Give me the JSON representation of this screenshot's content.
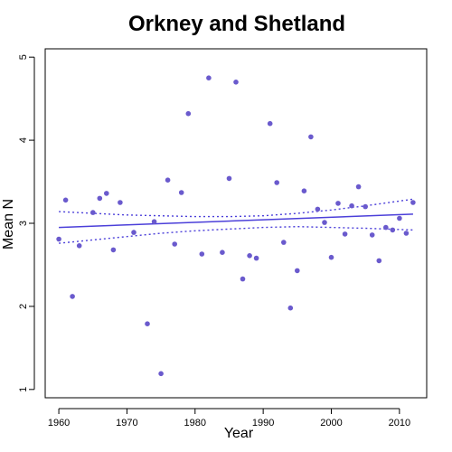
{
  "chart_data": {
    "type": "scatter",
    "title": "Orkney and Shetland",
    "xlabel": "Year",
    "ylabel": "Mean N",
    "xlim": [
      1958,
      2014
    ],
    "ylim": [
      0.9,
      5.1
    ],
    "x_ticks": [
      1960,
      1970,
      1980,
      1990,
      2000,
      2010
    ],
    "y_ticks": [
      1,
      2,
      3,
      4,
      5
    ],
    "colors": {
      "points": "#6a5acd",
      "trend": "#4b3fd9",
      "ci": "#4b3fd9"
    },
    "points": [
      [
        1960,
        2.81
      ],
      [
        1961,
        3.28
      ],
      [
        1962,
        2.12
      ],
      [
        1963,
        2.73
      ],
      [
        1965,
        3.13
      ],
      [
        1966,
        3.3
      ],
      [
        1967,
        3.36
      ],
      [
        1968,
        2.68
      ],
      [
        1969,
        3.25
      ],
      [
        1971,
        2.89
      ],
      [
        1973,
        1.79
      ],
      [
        1974,
        3.02
      ],
      [
        1975,
        1.19
      ],
      [
        1976,
        3.52
      ],
      [
        1977,
        2.75
      ],
      [
        1978,
        3.37
      ],
      [
        1979,
        4.32
      ],
      [
        1981,
        2.63
      ],
      [
        1982,
        4.75
      ],
      [
        1984,
        2.65
      ],
      [
        1985,
        3.54
      ],
      [
        1986,
        4.7
      ],
      [
        1987,
        2.33
      ],
      [
        1988,
        2.61
      ],
      [
        1989,
        2.58
      ],
      [
        1991,
        4.2
      ],
      [
        1992,
        3.49
      ],
      [
        1993,
        2.77
      ],
      [
        1994,
        1.98
      ],
      [
        1995,
        2.43
      ],
      [
        1996,
        3.39
      ],
      [
        1997,
        4.04
      ],
      [
        1998,
        3.17
      ],
      [
        1999,
        3.01
      ],
      [
        2000,
        2.59
      ],
      [
        2001,
        3.24
      ],
      [
        2002,
        2.87
      ],
      [
        2003,
        3.21
      ],
      [
        2004,
        3.44
      ],
      [
        2005,
        3.2
      ],
      [
        2006,
        2.86
      ],
      [
        2007,
        2.55
      ],
      [
        2008,
        2.95
      ],
      [
        2009,
        2.92
      ],
      [
        2010,
        3.06
      ],
      [
        2011,
        2.88
      ],
      [
        2012,
        3.25
      ]
    ],
    "trend": {
      "x": [
        1960,
        2012
      ],
      "y": [
        2.95,
        3.11
      ]
    },
    "ci_upper": [
      [
        1960,
        3.14
      ],
      [
        1965,
        3.12
      ],
      [
        1970,
        3.1
      ],
      [
        1975,
        3.09
      ],
      [
        1980,
        3.08
      ],
      [
        1985,
        3.08
      ],
      [
        1990,
        3.09
      ],
      [
        1995,
        3.12
      ],
      [
        2000,
        3.16
      ],
      [
        2005,
        3.21
      ],
      [
        2012,
        3.29
      ]
    ],
    "ci_lower": [
      [
        1960,
        2.76
      ],
      [
        1965,
        2.8
      ],
      [
        1970,
        2.84
      ],
      [
        1975,
        2.88
      ],
      [
        1980,
        2.91
      ],
      [
        1985,
        2.93
      ],
      [
        1990,
        2.95
      ],
      [
        1995,
        2.96
      ],
      [
        2000,
        2.95
      ],
      [
        2005,
        2.94
      ],
      [
        2012,
        2.92
      ]
    ]
  }
}
